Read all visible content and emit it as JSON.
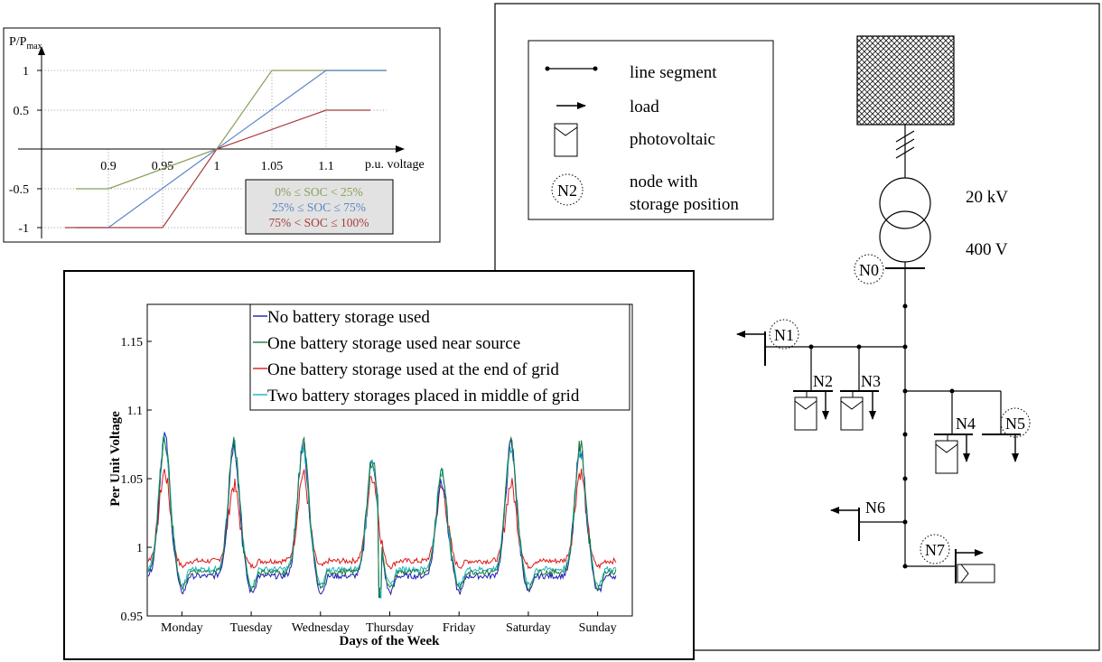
{
  "droop_chart": {
    "ylabel": "P/P",
    "ylabel_sub": "max",
    "xlabel": "p.u. voltage",
    "x_ticks": [
      "0.9",
      "0.95",
      "1",
      "1.05",
      "1.1"
    ],
    "y_ticks": [
      "1",
      "0.5",
      "-0.5",
      "-1"
    ],
    "legend": [
      "0% ≤ SOC <   25%",
      "25% ≤ SOC ≤   75%",
      "75% < SOC ≤ 100%"
    ],
    "colors": {
      "low": "#88a05a",
      "mid": "#5b86c8",
      "high": "#a83c3c",
      "legend_bg": "#e2e2e2"
    }
  },
  "chart_data": {
    "type": "line",
    "ylabel": "Per   Unit   Voltage",
    "xlabel": "Days   of   the   Week",
    "categories": [
      "Monday",
      "Tuesday",
      "Wednesday",
      "Thursday",
      "Friday",
      "Saturday",
      "Sunday"
    ],
    "ylim": [
      0.95,
      1.18
    ],
    "y_ticks": [
      "1.15",
      "1.1",
      "1.05",
      "1",
      "0.95"
    ],
    "series": [
      {
        "name": "No battery storage used",
        "color": "#1c1cb8",
        "daily_peaks": [
          1.081,
          1.075,
          1.075,
          1.064,
          1.05,
          1.075,
          1.072
        ],
        "night_level": 0.979
      },
      {
        "name": "One battery storage used near source",
        "color": "#1b7a3c",
        "daily_peaks": [
          1.08,
          1.077,
          1.076,
          1.065,
          1.056,
          1.076,
          1.074
        ],
        "night_level": 0.982
      },
      {
        "name": "One battery storage used at the end of grid",
        "color": "#e01818",
        "daily_peaks": [
          1.055,
          1.045,
          1.053,
          1.052,
          1.043,
          1.046,
          1.055
        ],
        "night_level": 0.99
      },
      {
        "name": "Two battery storages placed in middle of grid",
        "color": "#19b4c4",
        "daily_peaks": [
          1.078,
          1.074,
          1.073,
          1.062,
          1.053,
          1.074,
          1.071
        ],
        "night_level": 0.984
      }
    ]
  },
  "grid_diagram": {
    "legend": {
      "line_segment": "line segment",
      "load": "load",
      "photovoltaic": "photovoltaic",
      "node_symbol": "N2",
      "node_line1": "node with",
      "node_line2": "storage position"
    },
    "hv_label": "20 kV",
    "lv_label": "400 V",
    "nodes": {
      "n0": "N0",
      "n1": "N1",
      "n2": "N2",
      "n3": "N3",
      "n4": "N4",
      "n5": "N5",
      "n6": "N6",
      "n7": "N7"
    }
  }
}
